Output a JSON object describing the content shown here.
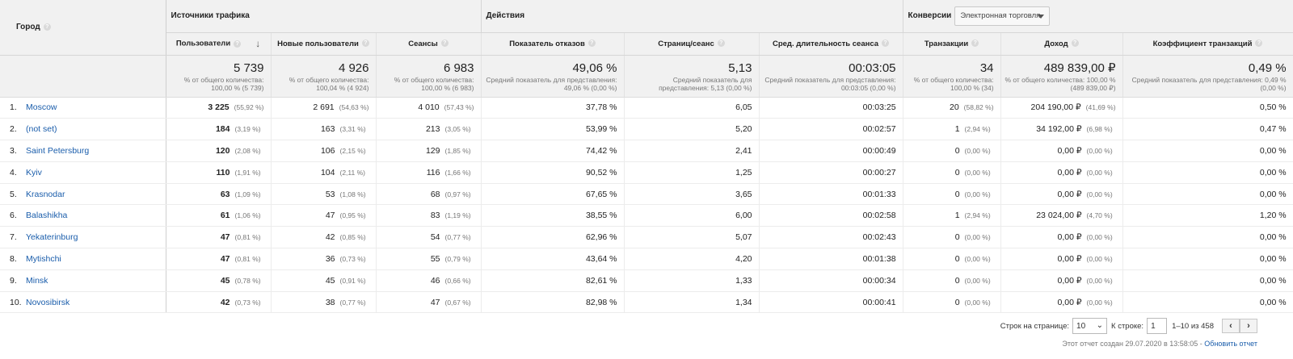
{
  "header": {
    "city": "Город",
    "group_traffic": "Источники трафика",
    "group_actions": "Действия",
    "group_conversions": "Конверсии",
    "conversion_select": "Электронная торговля"
  },
  "columns": {
    "users": "Пользователи",
    "new_users": "Новые пользователи",
    "sessions": "Сеансы",
    "bounce": "Показатель отказов",
    "pages": "Страниц/сеанс",
    "duration": "Сред. длительность сеанса",
    "transactions": "Транзакции",
    "revenue": "Доход",
    "conv_rate": "Коэффициент транзакций"
  },
  "totals": {
    "users": {
      "value": "5 739",
      "note": "% от общего количества: 100,00 % (5 739)"
    },
    "new_users": {
      "value": "4 926",
      "note": "% от общего количества: 100,04 % (4 924)"
    },
    "sessions": {
      "value": "6 983",
      "note": "% от общего количества: 100,00 % (6 983)"
    },
    "bounce": {
      "value": "49,06 %",
      "note": "Средний показатель для представления: 49,06 % (0,00 %)"
    },
    "pages": {
      "value": "5,13",
      "note": "Средний показатель для представления: 5,13 (0,00 %)"
    },
    "duration": {
      "value": "00:03:05",
      "note": "Средний показатель для представления: 00:03:05 (0,00 %)"
    },
    "transactions": {
      "value": "34",
      "note": "% от общего количества: 100,00 % (34)"
    },
    "revenue": {
      "value": "489 839,00 ₽",
      "note": "% от общего количества: 100,00 % (489 839,00 ₽)"
    },
    "conv_rate": {
      "value": "0,49 %",
      "note": "Средний показатель для представления: 0,49 % (0,00 %)"
    }
  },
  "rows": [
    {
      "idx": "1.",
      "city": "Moscow",
      "users": "3 225",
      "users_pct": "(55,92 %)",
      "new_users": "2 691",
      "new_users_pct": "(54,63 %)",
      "sessions": "4 010",
      "sessions_pct": "(57,43 %)",
      "bounce": "37,78 %",
      "pages": "6,05",
      "duration": "00:03:25",
      "transactions": "20",
      "transactions_pct": "(58,82 %)",
      "revenue": "204 190,00 ₽",
      "revenue_pct": "(41,69 %)",
      "conv_rate": "0,50 %"
    },
    {
      "idx": "2.",
      "city": "(not set)",
      "users": "184",
      "users_pct": "(3,19 %)",
      "new_users": "163",
      "new_users_pct": "(3,31 %)",
      "sessions": "213",
      "sessions_pct": "(3,05 %)",
      "bounce": "53,99 %",
      "pages": "5,20",
      "duration": "00:02:57",
      "transactions": "1",
      "transactions_pct": "(2,94 %)",
      "revenue": "34 192,00 ₽",
      "revenue_pct": "(6,98 %)",
      "conv_rate": "0,47 %"
    },
    {
      "idx": "3.",
      "city": "Saint Petersburg",
      "users": "120",
      "users_pct": "(2,08 %)",
      "new_users": "106",
      "new_users_pct": "(2,15 %)",
      "sessions": "129",
      "sessions_pct": "(1,85 %)",
      "bounce": "74,42 %",
      "pages": "2,41",
      "duration": "00:00:49",
      "transactions": "0",
      "transactions_pct": "(0,00 %)",
      "revenue": "0,00 ₽",
      "revenue_pct": "(0,00 %)",
      "conv_rate": "0,00 %"
    },
    {
      "idx": "4.",
      "city": "Kyiv",
      "users": "110",
      "users_pct": "(1,91 %)",
      "new_users": "104",
      "new_users_pct": "(2,11 %)",
      "sessions": "116",
      "sessions_pct": "(1,66 %)",
      "bounce": "90,52 %",
      "pages": "1,25",
      "duration": "00:00:27",
      "transactions": "0",
      "transactions_pct": "(0,00 %)",
      "revenue": "0,00 ₽",
      "revenue_pct": "(0,00 %)",
      "conv_rate": "0,00 %"
    },
    {
      "idx": "5.",
      "city": "Krasnodar",
      "users": "63",
      "users_pct": "(1,09 %)",
      "new_users": "53",
      "new_users_pct": "(1,08 %)",
      "sessions": "68",
      "sessions_pct": "(0,97 %)",
      "bounce": "67,65 %",
      "pages": "3,65",
      "duration": "00:01:33",
      "transactions": "0",
      "transactions_pct": "(0,00 %)",
      "revenue": "0,00 ₽",
      "revenue_pct": "(0,00 %)",
      "conv_rate": "0,00 %"
    },
    {
      "idx": "6.",
      "city": "Balashikha",
      "users": "61",
      "users_pct": "(1,06 %)",
      "new_users": "47",
      "new_users_pct": "(0,95 %)",
      "sessions": "83",
      "sessions_pct": "(1,19 %)",
      "bounce": "38,55 %",
      "pages": "6,00",
      "duration": "00:02:58",
      "transactions": "1",
      "transactions_pct": "(2,94 %)",
      "revenue": "23 024,00 ₽",
      "revenue_pct": "(4,70 %)",
      "conv_rate": "1,20 %"
    },
    {
      "idx": "7.",
      "city": "Yekaterinburg",
      "users": "47",
      "users_pct": "(0,81 %)",
      "new_users": "42",
      "new_users_pct": "(0,85 %)",
      "sessions": "54",
      "sessions_pct": "(0,77 %)",
      "bounce": "62,96 %",
      "pages": "5,07",
      "duration": "00:02:43",
      "transactions": "0",
      "transactions_pct": "(0,00 %)",
      "revenue": "0,00 ₽",
      "revenue_pct": "(0,00 %)",
      "conv_rate": "0,00 %"
    },
    {
      "idx": "8.",
      "city": "Mytishchi",
      "users": "47",
      "users_pct": "(0,81 %)",
      "new_users": "36",
      "new_users_pct": "(0,73 %)",
      "sessions": "55",
      "sessions_pct": "(0,79 %)",
      "bounce": "43,64 %",
      "pages": "4,20",
      "duration": "00:01:38",
      "transactions": "0",
      "transactions_pct": "(0,00 %)",
      "revenue": "0,00 ₽",
      "revenue_pct": "(0,00 %)",
      "conv_rate": "0,00 %"
    },
    {
      "idx": "9.",
      "city": "Minsk",
      "users": "45",
      "users_pct": "(0,78 %)",
      "new_users": "45",
      "new_users_pct": "(0,91 %)",
      "sessions": "46",
      "sessions_pct": "(0,66 %)",
      "bounce": "82,61 %",
      "pages": "1,33",
      "duration": "00:00:34",
      "transactions": "0",
      "transactions_pct": "(0,00 %)",
      "revenue": "0,00 ₽",
      "revenue_pct": "(0,00 %)",
      "conv_rate": "0,00 %"
    },
    {
      "idx": "10.",
      "city": "Novosibirsk",
      "users": "42",
      "users_pct": "(0,73 %)",
      "new_users": "38",
      "new_users_pct": "(0,77 %)",
      "sessions": "47",
      "sessions_pct": "(0,67 %)",
      "bounce": "82,98 %",
      "pages": "1,34",
      "duration": "00:00:41",
      "transactions": "0",
      "transactions_pct": "(0,00 %)",
      "revenue": "0,00 ₽",
      "revenue_pct": "(0,00 %)",
      "conv_rate": "0,00 %"
    }
  ],
  "pager": {
    "rows_label": "Строк на странице:",
    "rows_value": "10",
    "goto_label": "К строке:",
    "goto_value": "1",
    "range": "1–10 из 458",
    "prev": "‹",
    "next": "›"
  },
  "footer": {
    "created": "Этот отчет создан 29.07.2020 в 13:58:05 -",
    "refresh": "Обновить отчет"
  },
  "colors": {
    "link": "#1a5dab",
    "header_bg": "#f1f1f1"
  },
  "icons": {
    "help": "question-mark-icon",
    "sort": "arrow-down-icon"
  }
}
